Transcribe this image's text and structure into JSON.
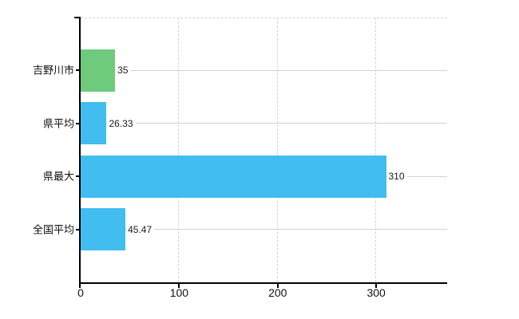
{
  "chart_data": {
    "type": "bar",
    "orientation": "horizontal",
    "title": "",
    "xlabel": "",
    "ylabel": "",
    "categories": [
      "吉野川市",
      "県平均",
      "県最大",
      "全国平均"
    ],
    "values": [
      35,
      26.33,
      310,
      45.47
    ],
    "value_labels": [
      "35",
      "26.33",
      "310",
      "45.47"
    ],
    "bar_colors": [
      "#6ecb7d",
      "#41bdef",
      "#41bdef",
      "#41bdef"
    ],
    "xlim": [
      0,
      372
    ],
    "xticks": [
      0,
      100,
      200,
      300
    ],
    "xtick_labels": [
      "0",
      "100",
      "200",
      "300"
    ],
    "grid": "on",
    "gridline_style_vertical": "dashed",
    "gridline_style_horizontal": "solid",
    "legend_position": "none",
    "colors": {
      "highlight_bar": "#6ecb7d",
      "default_bar": "#41bdef",
      "axis": "#000000",
      "grid_solid": "#d2d2d2",
      "grid_dashed": "#d5d2d8",
      "text": "#111111",
      "background": "#ffffff"
    }
  }
}
